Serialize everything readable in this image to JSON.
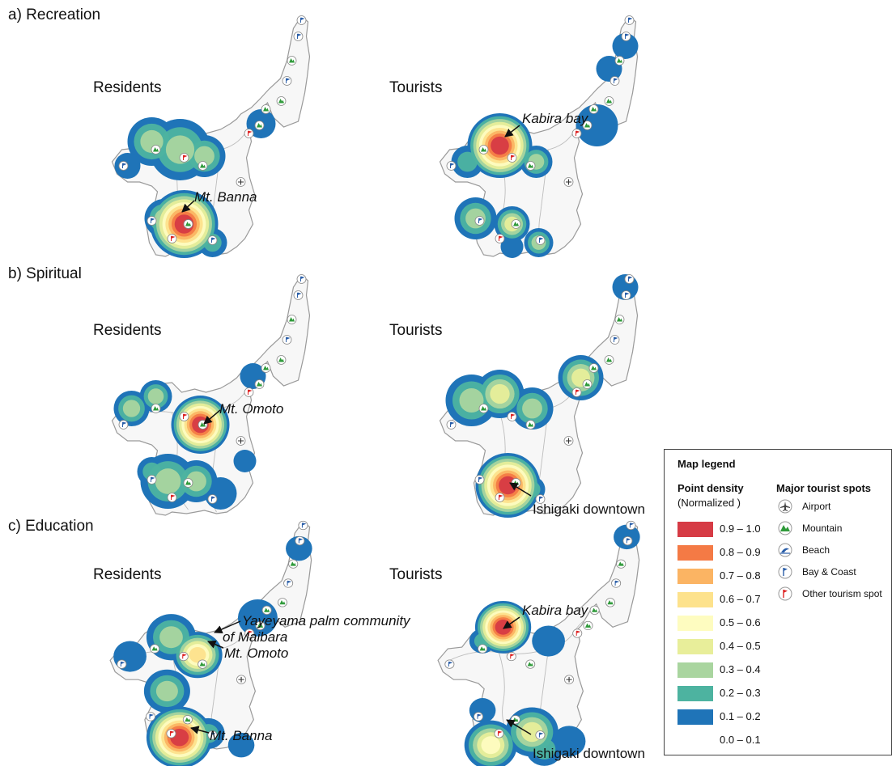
{
  "sections": [
    {
      "label": "a) Recreation"
    },
    {
      "label": "b) Spiritual"
    },
    {
      "label": "c) Education"
    }
  ],
  "panels": {
    "residents": "Residents",
    "tourists": "Tourists"
  },
  "annotations": {
    "kabira_bay": "Kabira bay",
    "mt_banna": "Mt. Banna",
    "mt_omoto": "Mt. Omoto",
    "ishigaki_downtown": "Ishigaki downtown",
    "yayeyama_line1": "Yayeyama palm community",
    "yayeyama_line2": "of Maibara"
  },
  "legend": {
    "title": "Map legend",
    "density_title": "Point density",
    "density_subtitle": "(Normalized )",
    "spots_title": "Major tourist spots",
    "density_classes": [
      {
        "range": "0.9 – 1.0",
        "color": "#d63b45"
      },
      {
        "range": "0.8 – 0.9",
        "color": "#f47a45"
      },
      {
        "range": "0.7 – 0.8",
        "color": "#fbb463"
      },
      {
        "range": "0.6 – 0.7",
        "color": "#fde28c"
      },
      {
        "range": "0.5 – 0.6",
        "color": "#fefcc0"
      },
      {
        "range": "0.4 – 0.5",
        "color": "#e8ee9a"
      },
      {
        "range": "0.3 – 0.4",
        "color": "#a9d59f"
      },
      {
        "range": "0.2 – 0.3",
        "color": "#4db3a0"
      },
      {
        "range": "0.1 – 0.2",
        "color": "#1f74b8"
      },
      {
        "range": "0.0 – 0.1",
        "color": "#ffffff"
      }
    ],
    "spots": [
      {
        "label": "Airport",
        "icon": "airport-icon"
      },
      {
        "label": "Mountain",
        "icon": "mountain-icon"
      },
      {
        "label": "Beach",
        "icon": "beach-icon"
      },
      {
        "label": "Bay & Coast",
        "icon": "bay-coast-icon"
      },
      {
        "label": "Other tourism spot",
        "icon": "other-spot-icon"
      }
    ]
  }
}
